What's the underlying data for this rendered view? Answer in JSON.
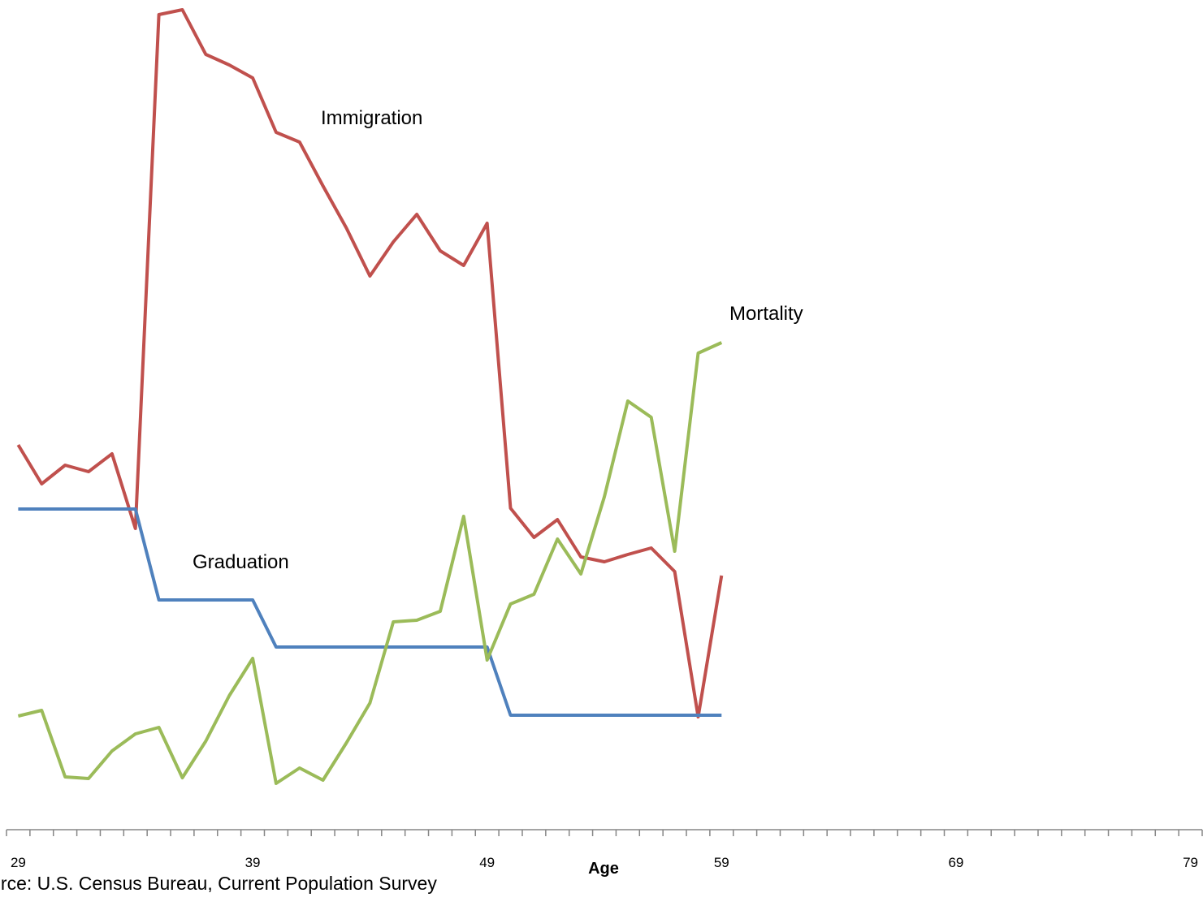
{
  "chart_data": {
    "type": "line",
    "x_label": "Age",
    "note": "Source: U.S. Census Bureau, Current Population Survey",
    "categories": [
      "29",
      null,
      null,
      null,
      null,
      null,
      null,
      null,
      null,
      null,
      "39",
      null,
      null,
      null,
      null,
      null,
      null,
      null,
      null,
      null,
      "49",
      null,
      null,
      null,
      null,
      null,
      null,
      null,
      null,
      null,
      "59",
      null,
      null,
      null,
      null,
      null,
      null,
      null,
      null,
      null,
      "69",
      null,
      null,
      null,
      null,
      null,
      null,
      null,
      null,
      null,
      "79"
    ],
    "ylim": [
      0,
      101.2
    ],
    "series": [
      {
        "name": "Immigration",
        "color": "#c0504d",
        "values": [
          47.4,
          42.6,
          44.9,
          44.1,
          46.3,
          37.1,
          100.4,
          101.0,
          95.5,
          94.2,
          92.6,
          85.9,
          84.7,
          79.3,
          74.1,
          68.2,
          72.4,
          75.8,
          71.3,
          69.5,
          74.7,
          39.6,
          36.0,
          38.2,
          33.6,
          33.0,
          33.9,
          34.7,
          31.8,
          13.9,
          31.3,
          null,
          null,
          null,
          null,
          null,
          null,
          null,
          null,
          null,
          null,
          null,
          null,
          null,
          null,
          null,
          null,
          null,
          null,
          null,
          null
        ]
      },
      {
        "name": "Graduation",
        "color": "#4f81bd",
        "values": [
          39.5,
          39.5,
          39.5,
          39.5,
          39.5,
          39.5,
          28.3,
          28.3,
          28.3,
          28.3,
          28.3,
          22.5,
          22.5,
          22.5,
          22.5,
          22.5,
          22.5,
          22.5,
          22.5,
          22.5,
          22.5,
          14.1,
          14.1,
          14.1,
          14.1,
          14.1,
          14.1,
          14.1,
          14.1,
          14.1,
          14.1,
          null,
          null,
          null,
          null,
          null,
          null,
          null,
          null,
          null,
          null,
          null,
          null,
          null,
          null,
          null,
          null,
          null,
          null,
          null,
          null
        ]
      },
      {
        "name": "Mortality",
        "color": "#9bbb59",
        "values": [
          14.0,
          14.7,
          6.5,
          6.3,
          9.7,
          11.8,
          12.6,
          6.4,
          10.9,
          16.5,
          21.1,
          5.7,
          7.6,
          6.1,
          10.7,
          15.6,
          25.6,
          25.8,
          26.9,
          38.6,
          20.9,
          27.8,
          29.0,
          35.8,
          31.5,
          41.0,
          52.8,
          50.8,
          34.3,
          58.7,
          60.0,
          null,
          null,
          null,
          null,
          null,
          null,
          null,
          null,
          null,
          null,
          null,
          null,
          null,
          null,
          null,
          null,
          null,
          null,
          null,
          null
        ]
      }
    ]
  }
}
